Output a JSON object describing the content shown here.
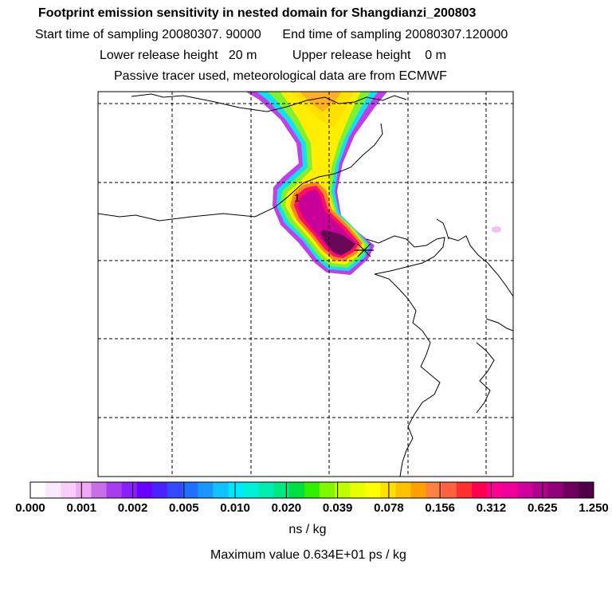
{
  "header": {
    "title": "Footprint emission sensitivity in nested domain for Shangdianzi_200803",
    "line2": "Start time of sampling 20080307. 90000      End time of sampling 20080307.120000",
    "line3": "Lower release height   20 m          Upper release height    0 m",
    "line4": "Passive tracer used, meteorological data are from ECMWF"
  },
  "map": {
    "site_label": "1",
    "site_marker": "cross-marker"
  },
  "colorbar": {
    "ticks": [
      "0.000",
      "0.001",
      "0.002",
      "0.005",
      "0.010",
      "0.020",
      "0.039",
      "0.078",
      "0.156",
      "0.312",
      "0.625",
      "1.250"
    ],
    "colors": [
      "#ffffff",
      "#fde9fd",
      "#f9ccf9",
      "#f0a8f4",
      "#c86ee8",
      "#a83cee",
      "#8a1eff",
      "#6a00ff",
      "#4a22ff",
      "#3348ff",
      "#2070ff",
      "#1898ff",
      "#10c0ff",
      "#00e8ff",
      "#00f0d8",
      "#00ecb0",
      "#00e880",
      "#00e040",
      "#30f000",
      "#80f800",
      "#c0ff00",
      "#e8ff00",
      "#ffff00",
      "#ffe000",
      "#ffc000",
      "#ffa000",
      "#ff8040",
      "#ff6040",
      "#ff3030",
      "#ff0050",
      "#ff0090",
      "#f00098",
      "#d000a0",
      "#b00090",
      "#900078",
      "#700060",
      "#500048"
    ],
    "unit": "ns / kg"
  },
  "footer": {
    "max_value": "Maximum value  0.634E+01 ps / kg"
  }
}
